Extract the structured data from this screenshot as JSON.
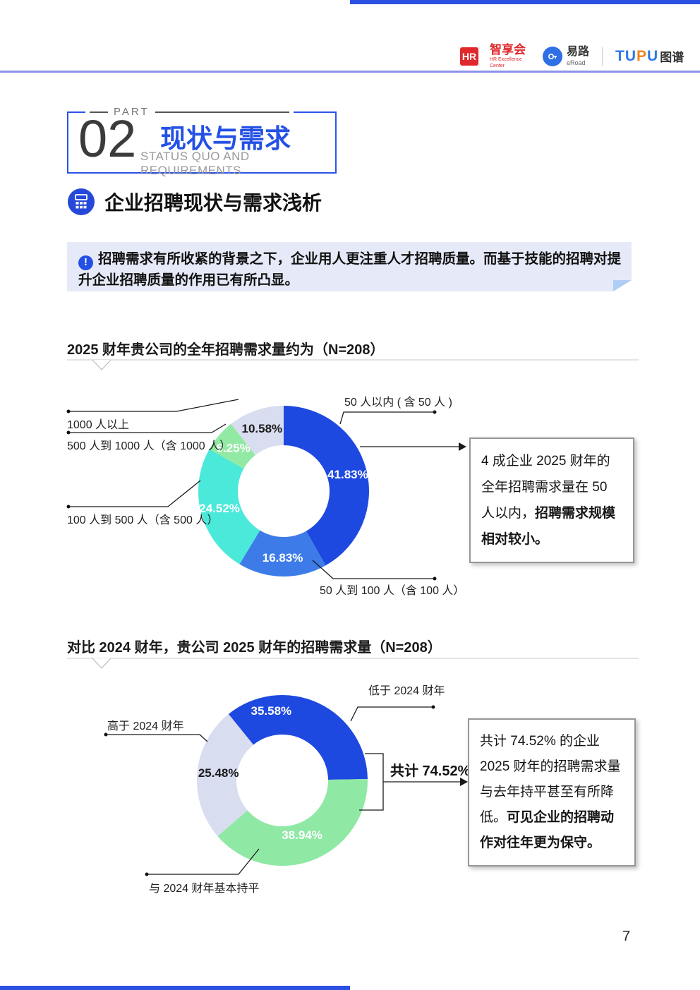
{
  "page": {
    "number": "7"
  },
  "colors": {
    "primary_blue": "#2451e4",
    "donut_dark_blue": "#1e49e0",
    "donut_medium_blue": "#3d7ce8",
    "donut_cyan": "#4ae9da",
    "donut_green": "#8fe9a5",
    "donut_lavender": "#d8ddf0",
    "note_background": "#e6eaf8",
    "note_fold": "#b0cdf6",
    "header_line": "#8a93e8",
    "hr_logo_red": "#e0282d",
    "tupu_blue": "#2f7ae6",
    "tupu_orange": "#f08519"
  },
  "header": {
    "hr_logo": {
      "badge": "HR",
      "name": "智享会",
      "sub1": "HR Excellence",
      "sub2": "Center"
    },
    "eroad_logo": {
      "name": "易路",
      "subtitle": "eRoad"
    },
    "tupu_logo": {
      "latin_prefix": "TU",
      "latin_p": "P",
      "latin_suffix": "U",
      "cjk": "图谱"
    }
  },
  "part_banner": {
    "kicker": "PART",
    "number": "02",
    "title": "现状与需求",
    "subtitle": "STATUS QUO AND REQUIREMENTS"
  },
  "section_heading": {
    "title": "企业招聘现状与需求浅析"
  },
  "note": {
    "icon": "exclamation-circle-icon",
    "text": "招聘需求有所收紧的背景之下，企业用人更注重人才招聘质量。而基于技能的招聘对提升企业招聘质量的作用已有所凸显。"
  },
  "chart_data": [
    {
      "type": "pie",
      "variant": "donut",
      "title": "2025 财年贵公司的全年招聘需求量约为（N=208）",
      "sample_n": 208,
      "rotation_deg": 0,
      "legend_position": "outside-leader-lines",
      "segments": [
        {
          "label": "50 人以内 ( 含 50 人 )",
          "value": 41.83,
          "display": "41.83%",
          "color": "#1e49e0",
          "pct_color": "#ffffff"
        },
        {
          "label": "50 人到 100 人（含 100 人）",
          "value": 16.83,
          "display": "16.83%",
          "color": "#3d7ce8",
          "pct_color": "#ffffff"
        },
        {
          "label": "100 人到 500 人（含 500 人）",
          "value": 24.52,
          "display": "24.52%",
          "color": "#4ae9da",
          "pct_color": "#ffffff"
        },
        {
          "label": "500 人到 1000 人（含 1000 人）",
          "value": 6.25,
          "display": "6.25%",
          "color": "#92e9a3",
          "pct_color": "#ffffff"
        },
        {
          "label": "1000 人以上",
          "value": 10.58,
          "display": "10.58%",
          "color": "#d8ddf0",
          "pct_color": "#1a1a1a"
        }
      ],
      "callout": {
        "normal": "4 成企业 2025 财年的全年招聘需求量在 50 人以内，",
        "bold": "招聘需求规模相对较小。"
      }
    },
    {
      "type": "pie",
      "variant": "donut",
      "title": "对比 2024 财年，贵公司 2025 财年的招聘需求量（N=208）",
      "sample_n": 208,
      "rotation_deg": -39,
      "legend_position": "outside-leader-lines",
      "segments": [
        {
          "label": "低于 2024 财年",
          "value": 35.58,
          "display": "35.58%",
          "color": "#1e49e0",
          "pct_color": "#ffffff",
          "label_angle": -9,
          "label_radius": 100
        },
        {
          "label": "与 2024 财年基本持平",
          "value": 38.94,
          "display": "38.94%",
          "color": "#8fe9a5",
          "pct_color": "#ffffff",
          "label_angle": 160,
          "label_radius": 82
        },
        {
          "label": "高于 2024 财年",
          "value": 25.48,
          "display": "25.48%",
          "color": "#d8ddf0",
          "pct_color": "#1a1a1a",
          "label_angle": 277,
          "label_radius": 91
        }
      ],
      "bracket_label": "共计 74.52%",
      "callout": {
        "normal": "共计 74.52% 的企业 2025 财年的招聘需求量与去年持平甚至有所降低。",
        "bold": "可见企业的招聘动作对往年更为保守。"
      }
    }
  ]
}
